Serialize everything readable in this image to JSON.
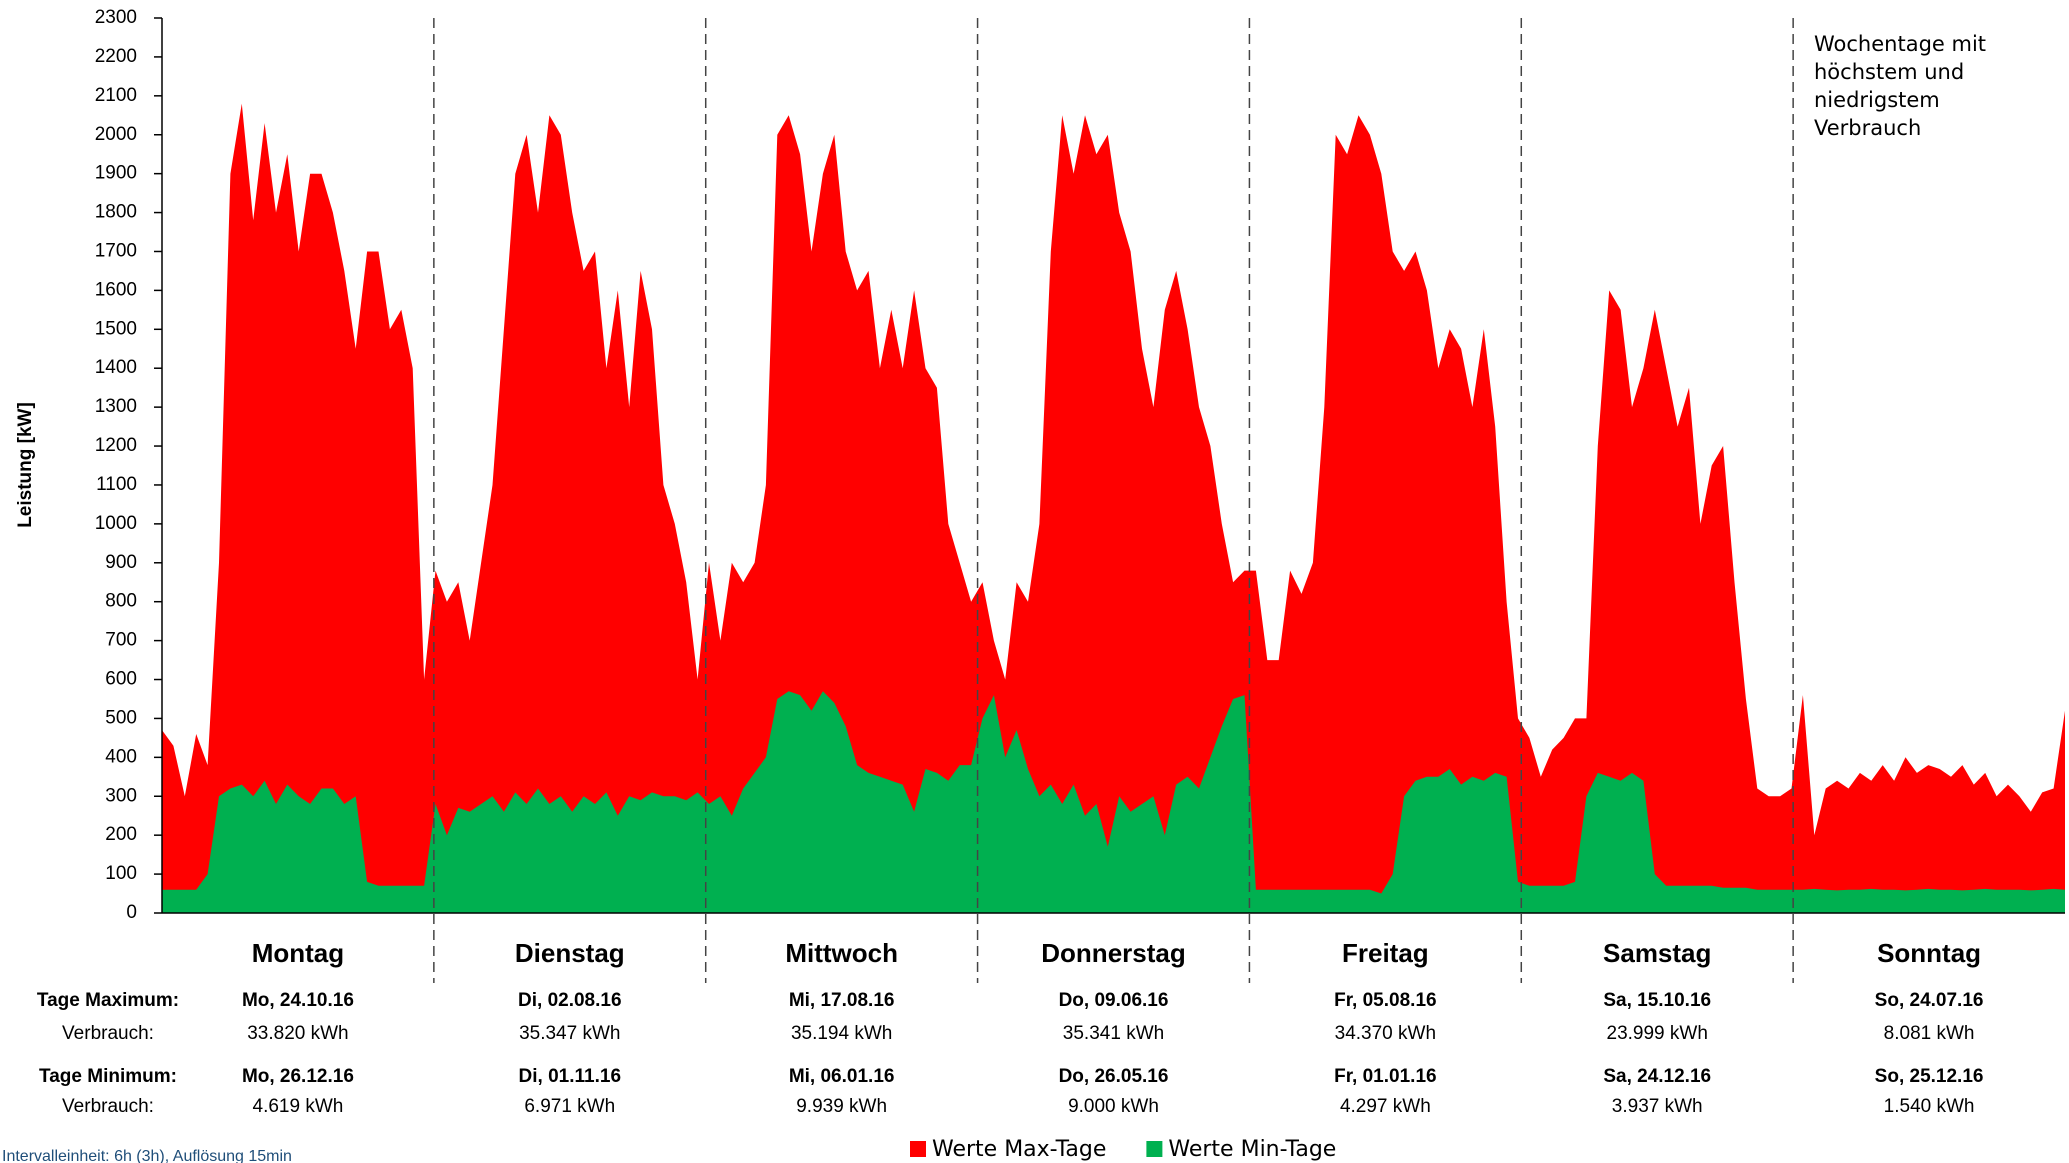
{
  "chart_data": {
    "type": "area",
    "ylabel": "Leistung [kW]",
    "categories": [
      "Montag",
      "Dienstag",
      "Mittwoch",
      "Donnerstag",
      "Freitag",
      "Samstag",
      "Sonntag"
    ],
    "ylim": [
      0,
      2300
    ],
    "yticks": [
      0,
      100,
      200,
      300,
      400,
      500,
      600,
      700,
      800,
      900,
      1000,
      1100,
      1200,
      1300,
      1400,
      1500,
      1600,
      1700,
      1800,
      1900,
      2000,
      2100,
      2200,
      2300
    ],
    "series": [
      {
        "name": "Werte Max-Tage",
        "color": "#ff0000",
        "values": [
          [
            470,
            430,
            300,
            460,
            380,
            900,
            1900,
            2080,
            1780,
            2030,
            1800,
            1950,
            1700,
            1900,
            1900,
            1800,
            1650,
            1450,
            1700,
            1700,
            1500,
            1550,
            1400,
            600
          ],
          [
            880,
            800,
            850,
            700,
            900,
            1100,
            1500,
            1900,
            2000,
            1800,
            2050,
            2000,
            1800,
            1650,
            1700,
            1400,
            1600,
            1300,
            1650,
            1500,
            1100,
            1000,
            850,
            600
          ],
          [
            900,
            700,
            900,
            850,
            900,
            1100,
            2000,
            2050,
            1950,
            1700,
            1900,
            2000,
            1700,
            1600,
            1650,
            1400,
            1550,
            1400,
            1600,
            1400,
            1350,
            1000,
            900,
            800
          ],
          [
            850,
            700,
            600,
            850,
            800,
            1000,
            1700,
            2050,
            1900,
            2050,
            1950,
            2000,
            1800,
            1700,
            1450,
            1300,
            1550,
            1650,
            1500,
            1300,
            1200,
            1000,
            850,
            880
          ],
          [
            880,
            650,
            650,
            880,
            820,
            900,
            1300,
            2000,
            1950,
            2050,
            2000,
            1900,
            1700,
            1650,
            1700,
            1600,
            1400,
            1500,
            1450,
            1300,
            1500,
            1250,
            800,
            500
          ],
          [
            450,
            350,
            420,
            450,
            500,
            500,
            1200,
            1600,
            1550,
            1300,
            1400,
            1550,
            1400,
            1250,
            1350,
            1000,
            1150,
            1200,
            850,
            550,
            320,
            300,
            300,
            320
          ],
          [
            560,
            200,
            320,
            340,
            320,
            360,
            340,
            380,
            340,
            400,
            360,
            380,
            370,
            350,
            380,
            330,
            360,
            300,
            330,
            300,
            260,
            310,
            320,
            520
          ]
        ]
      },
      {
        "name": "Werte Min-Tage",
        "color": "#00b050",
        "values": [
          [
            60,
            60,
            60,
            60,
            100,
            300,
            320,
            330,
            300,
            340,
            280,
            330,
            300,
            280,
            320,
            320,
            280,
            300,
            80,
            70,
            70,
            70,
            70,
            70
          ],
          [
            280,
            200,
            270,
            260,
            280,
            300,
            260,
            310,
            280,
            320,
            280,
            300,
            260,
            300,
            280,
            310,
            250,
            300,
            290,
            310,
            300,
            300,
            290,
            310
          ],
          [
            280,
            300,
            250,
            320,
            360,
            400,
            550,
            570,
            560,
            520,
            570,
            540,
            480,
            380,
            360,
            350,
            340,
            330,
            260,
            370,
            360,
            340,
            380,
            380
          ],
          [
            500,
            560,
            400,
            470,
            370,
            300,
            330,
            280,
            330,
            250,
            280,
            170,
            300,
            260,
            280,
            300,
            200,
            330,
            350,
            320,
            400,
            480,
            550,
            560
          ],
          [
            60,
            60,
            60,
            60,
            60,
            60,
            60,
            60,
            60,
            60,
            60,
            50,
            100,
            300,
            340,
            350,
            350,
            370,
            330,
            350,
            340,
            360,
            350,
            80
          ],
          [
            70,
            70,
            70,
            70,
            80,
            300,
            360,
            350,
            340,
            360,
            340,
            100,
            70,
            70,
            70,
            70,
            70,
            65,
            65,
            65,
            60,
            60,
            60,
            60
          ],
          [
            60,
            62,
            60,
            58,
            60,
            60,
            62,
            60,
            60,
            58,
            60,
            62,
            60,
            60,
            58,
            60,
            62,
            60,
            60,
            60,
            58,
            60,
            62,
            60
          ]
        ]
      }
    ],
    "annotation": [
      "Wochentage mit",
      "höchstem und",
      "niedrigstem",
      "Verbrauch"
    ],
    "summary": {
      "max_label": "Tage Maximum:",
      "max_use_label": "Verbrauch:",
      "min_label": "Tage Minimum:",
      "min_use_label": "Verbrauch:",
      "max_days": [
        "Mo, 24.10.16",
        "Di, 02.08.16",
        "Mi, 17.08.16",
        "Do, 09.06.16",
        "Fr, 05.08.16",
        "Sa, 15.10.16",
        "So, 24.07.16"
      ],
      "max_kwh": [
        "33.820 kWh",
        "35.347 kWh",
        "35.194 kWh",
        "35.341 kWh",
        "34.370 kWh",
        "23.999 kWh",
        "8.081 kWh"
      ],
      "min_days": [
        "Mo, 26.12.16",
        "Di, 01.11.16",
        "Mi, 06.01.16",
        "Do, 26.05.16",
        "Fr, 01.01.16",
        "Sa, 24.12.16",
        "So, 25.12.16"
      ],
      "min_kwh": [
        "4.619 kWh",
        "6.971 kWh",
        "9.939 kWh",
        "9.000 kWh",
        "4.297 kWh",
        "3.937 kWh",
        "1.540 kWh"
      ]
    },
    "footnote": "Intervalleinheit: 6h (3h), Auflösung 15min"
  }
}
